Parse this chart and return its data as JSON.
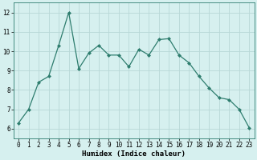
{
  "x": [
    0,
    1,
    2,
    3,
    4,
    5,
    6,
    7,
    8,
    9,
    10,
    11,
    12,
    13,
    14,
    15,
    16,
    17,
    18,
    19,
    20,
    21,
    22,
    23
  ],
  "y": [
    6.3,
    7.0,
    8.4,
    8.7,
    10.3,
    12.0,
    9.1,
    9.9,
    10.3,
    9.8,
    9.8,
    9.2,
    10.1,
    9.8,
    10.6,
    10.65,
    9.8,
    9.4,
    8.7,
    8.1,
    7.6,
    7.5,
    7.0,
    6.05
  ],
  "line_color": "#2e7d6e",
  "marker": "D",
  "marker_size": 2.0,
  "bg_color": "#d6f0ef",
  "grid_color": "#b8d8d6",
  "xlabel": "Humidex (Indice chaleur)",
  "xlim": [
    -0.5,
    23.5
  ],
  "ylim": [
    5.5,
    12.5
  ],
  "yticks": [
    6,
    7,
    8,
    9,
    10,
    11,
    12
  ],
  "xticks": [
    0,
    1,
    2,
    3,
    4,
    5,
    6,
    7,
    8,
    9,
    10,
    11,
    12,
    13,
    14,
    15,
    16,
    17,
    18,
    19,
    20,
    21,
    22,
    23
  ],
  "label_fontsize": 6.5,
  "tick_fontsize": 5.5
}
